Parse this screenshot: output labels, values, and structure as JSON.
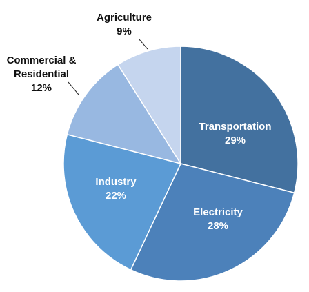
{
  "chart_data": {
    "type": "pie",
    "title": "",
    "start_angle_deg": 0,
    "direction": "clockwise",
    "legend": "none",
    "slices": [
      {
        "label": "Transportation",
        "pct_label": "29%",
        "value": 29,
        "color": "#43719f",
        "label_pos": "inside"
      },
      {
        "label": "Electricity",
        "pct_label": "28%",
        "value": 28,
        "color": "#4c81ba",
        "label_pos": "inside"
      },
      {
        "label": "Industry",
        "pct_label": "22%",
        "value": 22,
        "color": "#5b9bd5",
        "label_pos": "inside"
      },
      {
        "label": "Commercial & Residential",
        "label_lines": [
          "Commercial &",
          "Residential"
        ],
        "pct_label": "12%",
        "value": 12,
        "color": "#98b8e1",
        "label_pos": "outside"
      },
      {
        "label": "Agriculture",
        "pct_label": "9%",
        "value": 9,
        "color": "#c5d5ee",
        "label_pos": "outside"
      }
    ]
  }
}
